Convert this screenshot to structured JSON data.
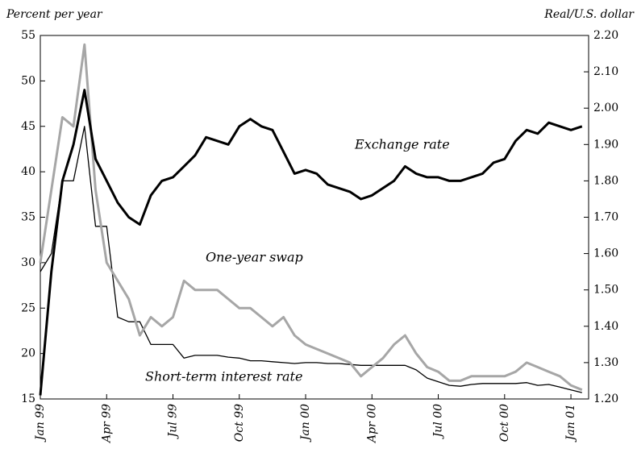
{
  "chart_data": {
    "type": "line",
    "y_label": "Percent per year",
    "y2_label": "Real/U.S. dollar",
    "annotations": [
      "Exchange rate",
      "One-year swap",
      "Short-term interest rate"
    ],
    "xlim": [
      0,
      24.8
    ],
    "xticks": [
      {
        "value": 0,
        "label": "Jan 99"
      },
      {
        "value": 3,
        "label": "Apr 99"
      },
      {
        "value": 6,
        "label": "Jul 99"
      },
      {
        "value": 9,
        "label": "Oct 99"
      },
      {
        "value": 12,
        "label": "Jan 00"
      },
      {
        "value": 15,
        "label": "Apr 00"
      },
      {
        "value": 18,
        "label": "Jul 00"
      },
      {
        "value": 21,
        "label": "Oct 00"
      },
      {
        "value": 24,
        "label": "Jan 01"
      }
    ],
    "ylim": [
      15,
      55
    ],
    "yticks": [
      15,
      20,
      25,
      30,
      35,
      40,
      45,
      50,
      55
    ],
    "y2lim": [
      1.2,
      2.2
    ],
    "y2ticks": [
      {
        "value": 1.2,
        "label": "1.20"
      },
      {
        "value": 1.3,
        "label": "1.30"
      },
      {
        "value": 1.4,
        "label": "1.40"
      },
      {
        "value": 1.5,
        "label": "1.50"
      },
      {
        "value": 1.6,
        "label": "1.60"
      },
      {
        "value": 1.7,
        "label": "1.70"
      },
      {
        "value": 1.8,
        "label": "1.80"
      },
      {
        "value": 1.9,
        "label": "1.90"
      },
      {
        "value": 2.0,
        "label": "2.00"
      },
      {
        "value": 2.1,
        "label": "2.10"
      },
      {
        "value": 2.2,
        "label": "2.20"
      }
    ],
    "x": [
      0,
      0.5,
      1,
      1.5,
      2,
      2.5,
      3,
      3.5,
      4,
      4.5,
      5,
      5.5,
      6,
      6.5,
      7,
      7.5,
      8,
      8.5,
      9,
      9.5,
      10,
      10.5,
      11,
      11.5,
      12,
      12.5,
      13,
      13.5,
      14,
      14.5,
      15,
      15.5,
      16,
      16.5,
      17,
      17.5,
      18,
      18.5,
      19,
      19.5,
      20,
      20.5,
      21,
      21.5,
      22,
      22.5,
      23,
      23.5,
      24,
      24.5
    ],
    "series": [
      {
        "name": "Short-term interest rate",
        "color": "#000000",
        "width": 1.3,
        "values": [
          29,
          31,
          39,
          39,
          45,
          34,
          34,
          24,
          23.5,
          23.5,
          21,
          21,
          21,
          19.5,
          19.8,
          19.8,
          19.8,
          19.6,
          19.5,
          19.2,
          19.2,
          19.1,
          19,
          18.9,
          19,
          19,
          18.9,
          18.9,
          18.8,
          18.7,
          18.7,
          18.7,
          18.7,
          18.7,
          18.2,
          17.3,
          16.9,
          16.5,
          16.4,
          16.6,
          16.7,
          16.7,
          16.7,
          16.7,
          16.8,
          16.5,
          16.6,
          16.3,
          16,
          15.7
        ]
      },
      {
        "name": "One-year swap",
        "color": "#a6a6a6",
        "width": 3,
        "values": [
          30,
          38,
          46,
          45,
          54,
          38,
          30,
          28,
          26,
          22,
          24,
          23,
          24,
          28,
          27,
          27,
          27,
          26,
          25,
          25,
          24,
          23,
          24,
          22,
          21,
          20.5,
          20,
          19.5,
          19,
          17.5,
          18.5,
          19.5,
          21,
          22,
          20,
          18.5,
          18,
          17,
          17,
          17.5,
          17.5,
          17.5,
          17.5,
          18,
          19,
          18.5,
          18,
          17.5,
          16.5,
          16
        ]
      },
      {
        "name": "Exchange rate",
        "color": "#000000",
        "width": 3,
        "axis": "y2",
        "values": [
          1.21,
          1.55,
          1.8,
          1.9,
          2.05,
          1.86,
          1.8,
          1.74,
          1.7,
          1.68,
          1.76,
          1.8,
          1.81,
          1.84,
          1.87,
          1.92,
          1.91,
          1.9,
          1.95,
          1.97,
          1.95,
          1.94,
          1.88,
          1.82,
          1.83,
          1.82,
          1.79,
          1.78,
          1.77,
          1.75,
          1.76,
          1.78,
          1.8,
          1.84,
          1.82,
          1.81,
          1.81,
          1.8,
          1.8,
          1.81,
          1.82,
          1.85,
          1.86,
          1.91,
          1.94,
          1.93,
          1.96,
          1.95,
          1.94,
          1.95
        ]
      }
    ]
  }
}
